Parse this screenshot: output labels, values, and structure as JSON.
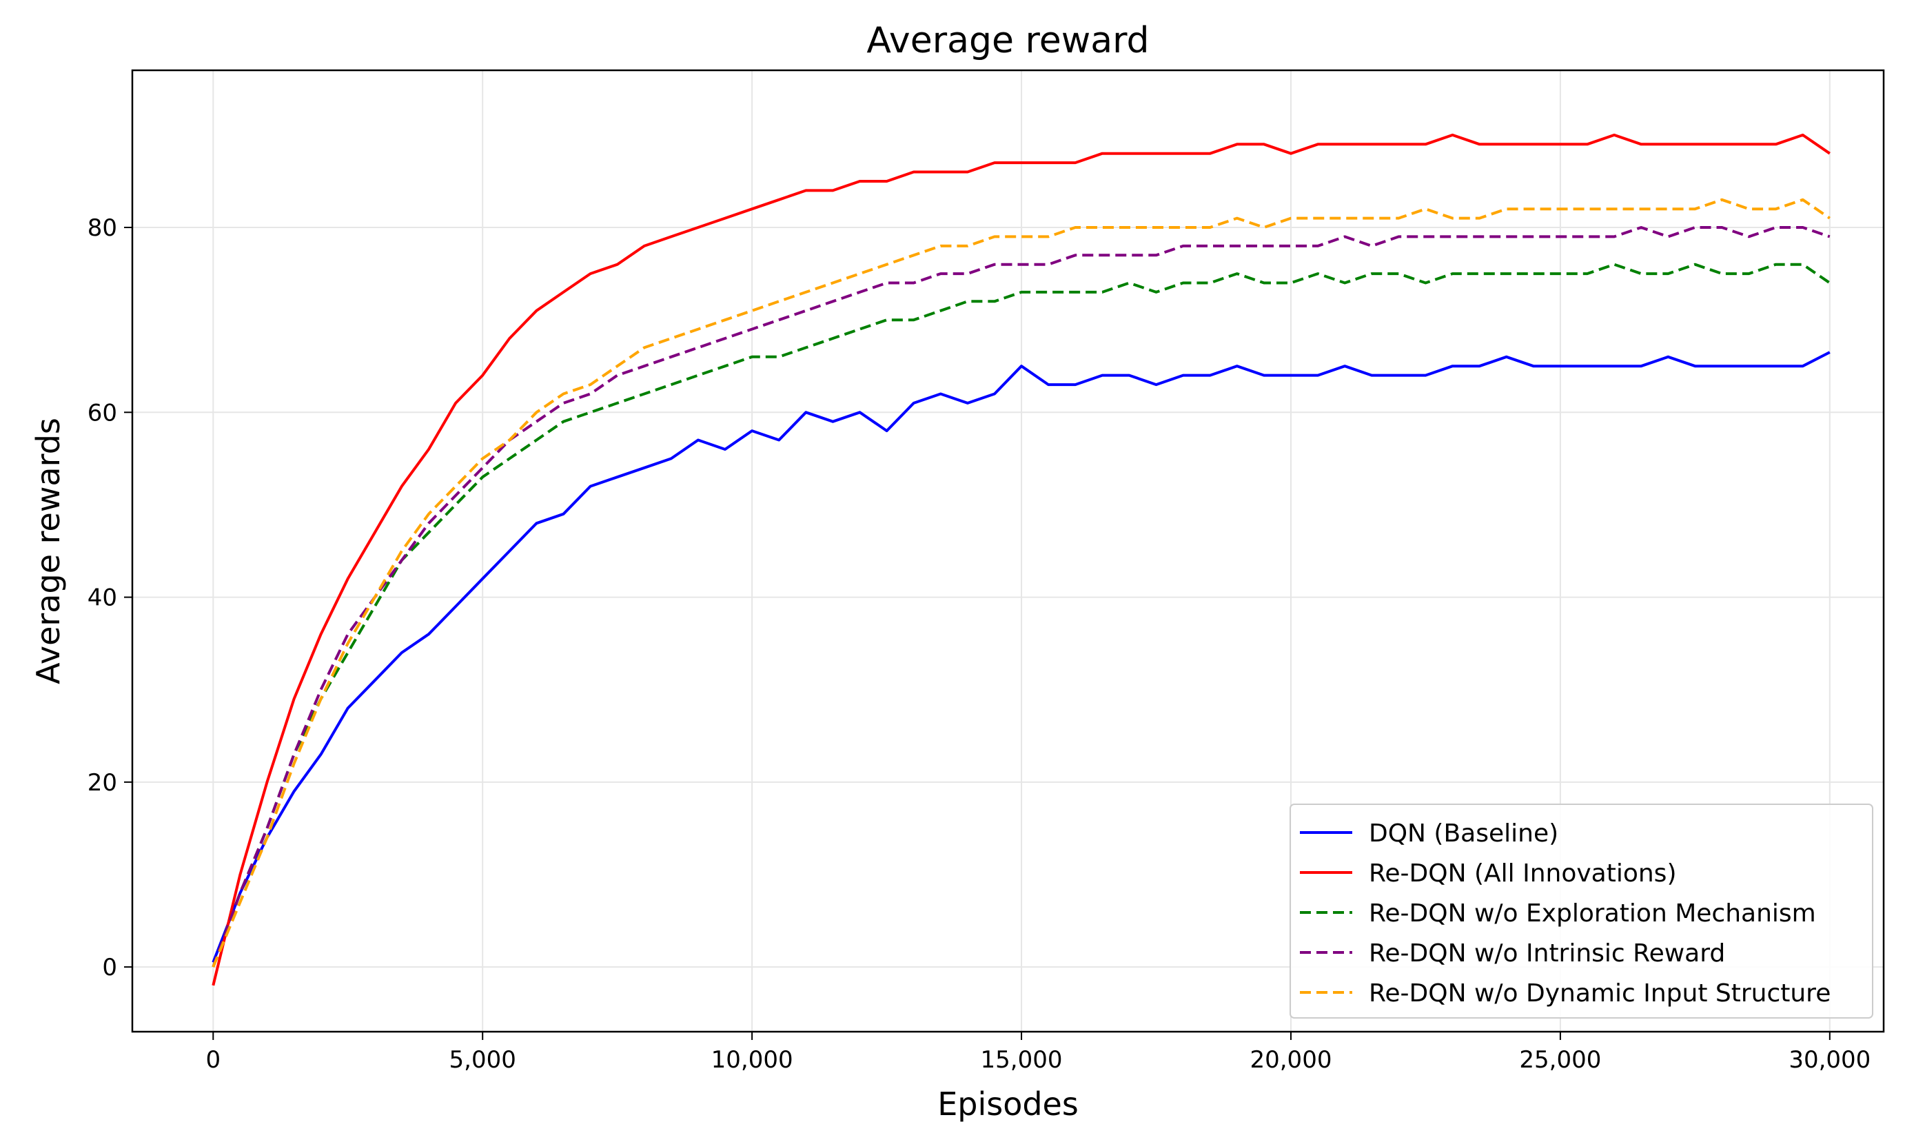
{
  "chart_data": {
    "type": "line",
    "title": "Average reward",
    "xlabel": "Episodes",
    "ylabel": "Average rewards",
    "xlim": [
      -1500,
      31000
    ],
    "ylim": [
      -7,
      97
    ],
    "grid": true,
    "legend_position": "bottom-right",
    "x_ticks": [
      0,
      5000,
      10000,
      15000,
      20000,
      25000,
      30000
    ],
    "x_tick_labels": [
      "0",
      "5,000",
      "10,000",
      "15,000",
      "20,000",
      "25,000",
      "30,000"
    ],
    "y_ticks": [
      0,
      20,
      40,
      60,
      80
    ],
    "y_tick_labels": [
      "0",
      "20",
      "40",
      "60",
      "80"
    ],
    "x": [
      0,
      500,
      1000,
      1500,
      2000,
      2500,
      3000,
      3500,
      4000,
      4500,
      5000,
      5500,
      6000,
      6500,
      7000,
      7500,
      8000,
      8500,
      9000,
      9500,
      10000,
      10500,
      11000,
      11500,
      12000,
      12500,
      13000,
      13500,
      14000,
      14500,
      15000,
      15500,
      16000,
      16500,
      17000,
      17500,
      18000,
      18500,
      19000,
      19500,
      20000,
      20500,
      21000,
      21500,
      22000,
      22500,
      23000,
      23500,
      24000,
      24500,
      25000,
      25500,
      26000,
      26500,
      27000,
      27500,
      28000,
      28500,
      29000,
      29500,
      30000
    ],
    "series": [
      {
        "name": "DQN (Baseline)",
        "color": "#0000ff",
        "dash": "solid",
        "values": [
          0.5,
          8,
          14,
          19,
          23,
          28,
          31,
          34,
          36,
          39,
          42,
          45,
          48,
          49,
          52,
          53,
          54,
          55,
          57,
          56,
          58,
          57,
          60,
          59,
          60,
          58,
          61,
          62,
          61,
          62,
          65,
          63,
          63,
          64,
          64,
          63,
          64,
          64,
          65,
          64,
          64,
          64,
          65,
          64,
          64,
          64,
          65,
          65,
          66,
          65,
          65,
          65,
          65,
          65,
          66,
          65,
          65,
          65,
          65,
          65,
          66.5
        ]
      },
      {
        "name": "Re-DQN (All Innovations)",
        "color": "#ff0000",
        "dash": "solid",
        "values": [
          -2,
          10,
          20,
          29,
          36,
          42,
          47,
          52,
          56,
          61,
          64,
          68,
          71,
          73,
          75,
          76,
          78,
          79,
          80,
          81,
          82,
          83,
          84,
          84,
          85,
          85,
          86,
          86,
          86,
          87,
          87,
          87,
          87,
          88,
          88,
          88,
          88,
          88,
          89,
          89,
          88,
          89,
          89,
          89,
          89,
          89,
          90,
          89,
          89,
          89,
          89,
          89,
          90,
          89,
          89,
          89,
          89,
          89,
          89,
          90,
          88
        ]
      },
      {
        "name": "Re-DQN w/o Exploration Mechanism",
        "color": "#008000",
        "dash": "dashed",
        "values": [
          0,
          8,
          15,
          23,
          29,
          34,
          39,
          44,
          47,
          50,
          53,
          55,
          57,
          59,
          60,
          61,
          62,
          63,
          64,
          65,
          66,
          66,
          67,
          68,
          69,
          70,
          70,
          71,
          72,
          72,
          73,
          73,
          73,
          73,
          74,
          73,
          74,
          74,
          75,
          74,
          74,
          75,
          74,
          75,
          75,
          74,
          75,
          75,
          75,
          75,
          75,
          75,
          76,
          75,
          75,
          76,
          75,
          75,
          76,
          76,
          74
        ]
      },
      {
        "name": "Re-DQN w/o Intrinsic Reward",
        "color": "#800080",
        "dash": "dashed",
        "values": [
          0,
          8,
          15,
          23,
          30,
          36,
          40,
          44,
          48,
          51,
          54,
          57,
          59,
          61,
          62,
          64,
          65,
          66,
          67,
          68,
          69,
          70,
          71,
          72,
          73,
          74,
          74,
          75,
          75,
          76,
          76,
          76,
          77,
          77,
          77,
          77,
          78,
          78,
          78,
          78,
          78,
          78,
          79,
          78,
          79,
          79,
          79,
          79,
          79,
          79,
          79,
          79,
          79,
          80,
          79,
          80,
          80,
          79,
          80,
          80,
          79
        ]
      },
      {
        "name": "Re-DQN w/o Dynamic Input Structure",
        "color": "#ffa500",
        "dash": "dashed",
        "values": [
          0,
          7,
          14,
          22,
          29,
          35,
          40,
          45,
          49,
          52,
          55,
          57,
          60,
          62,
          63,
          65,
          67,
          68,
          69,
          70,
          71,
          72,
          73,
          74,
          75,
          76,
          77,
          78,
          78,
          79,
          79,
          79,
          80,
          80,
          80,
          80,
          80,
          80,
          81,
          80,
          81,
          81,
          81,
          81,
          81,
          82,
          81,
          81,
          82,
          82,
          82,
          82,
          82,
          82,
          82,
          82,
          83,
          82,
          82,
          83,
          81
        ]
      }
    ]
  }
}
